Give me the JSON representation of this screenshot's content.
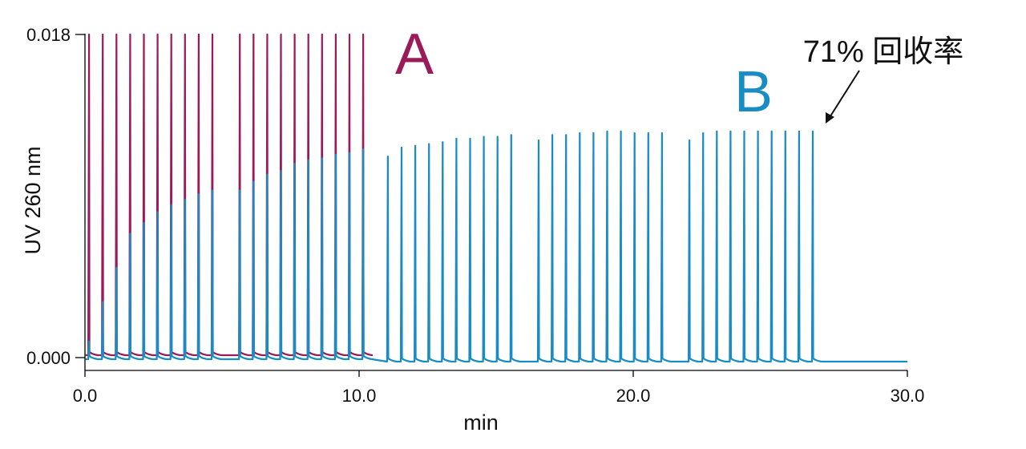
{
  "chart_data": {
    "type": "line",
    "xlabel": "min",
    "ylabel": "UV 260 nm",
    "xlim": [
      0,
      30
    ],
    "ylim": [
      0,
      0.018
    ],
    "x_ticks": [
      "0.0",
      "10.0",
      "20.0",
      "30.0"
    ],
    "y_ticks": [
      "0.000",
      "0.018"
    ],
    "grid": false,
    "series": [
      {
        "name": "A",
        "color": "#9b1b5a",
        "peak_times": [
          0.15,
          0.65,
          1.15,
          1.65,
          2.15,
          2.65,
          3.15,
          3.65,
          4.15,
          4.65,
          5.65,
          6.15,
          6.65,
          7.15,
          7.65,
          8.15,
          8.65,
          9.15,
          9.65,
          10.15
        ],
        "peak_heights": [
          0.018,
          0.018,
          0.018,
          0.018,
          0.018,
          0.018,
          0.018,
          0.018,
          0.018,
          0.018,
          0.018,
          0.018,
          0.018,
          0.018,
          0.018,
          0.018,
          0.018,
          0.018,
          0.018,
          0.018
        ]
      },
      {
        "name": "B",
        "color": "#1a8cc4",
        "peak_times": [
          0.15,
          0.65,
          1.15,
          1.65,
          2.15,
          2.65,
          3.15,
          3.65,
          4.15,
          4.65,
          5.65,
          6.15,
          6.65,
          7.15,
          7.65,
          8.15,
          8.65,
          9.15,
          9.65,
          10.15,
          11.05,
          11.55,
          12.05,
          12.55,
          13.05,
          13.55,
          14.05,
          14.55,
          15.05,
          15.55,
          16.55,
          17.05,
          17.55,
          18.05,
          18.55,
          19.05,
          19.55,
          20.05,
          20.55,
          21.05,
          22.05,
          22.55,
          23.05,
          23.55,
          24.05,
          24.55,
          25.05,
          25.55,
          26.05,
          26.55
        ],
        "peak_heights": [
          0.0009,
          0.0031,
          0.005,
          0.0069,
          0.0075,
          0.0081,
          0.0085,
          0.0088,
          0.0091,
          0.0093,
          0.0093,
          0.0098,
          0.0102,
          0.0104,
          0.0108,
          0.011,
          0.0111,
          0.0113,
          0.0114,
          0.0116,
          0.0112,
          0.0117,
          0.0118,
          0.0119,
          0.012,
          0.0122,
          0.0122,
          0.0123,
          0.0123,
          0.0124,
          0.0121,
          0.0124,
          0.0124,
          0.0125,
          0.0125,
          0.0126,
          0.0126,
          0.0125,
          0.0125,
          0.0125,
          0.0121,
          0.0125,
          0.0126,
          0.0126,
          0.0126,
          0.0126,
          0.0126,
          0.0126,
          0.0126,
          0.0126
        ]
      }
    ],
    "annotations": [
      {
        "text": "71% 回收率",
        "target_series": "B",
        "target_x": 26.55
      }
    ]
  }
}
